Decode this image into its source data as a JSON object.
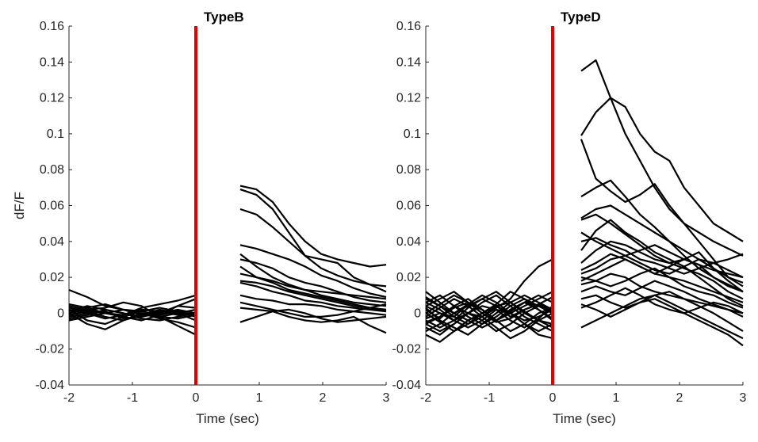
{
  "chart_data": [
    {
      "type": "line",
      "title": "TypeB",
      "xlabel": "Time (sec)",
      "ylabel": "dF/F",
      "xlim": [
        -2,
        3
      ],
      "ylim": [
        -0.04,
        0.16
      ],
      "xticks": [
        "-2",
        "-1",
        "0",
        "1",
        "2",
        "3"
      ],
      "yticks": [
        "-0.04",
        "-0.02",
        "0",
        "0.02",
        "0.04",
        "0.06",
        "0.08",
        "0.1",
        "0.12",
        "0.14",
        "0.16"
      ],
      "event_line": {
        "x": 0,
        "color": "#e00000"
      },
      "line_color": "#000000",
      "pre_window": [
        -2,
        0
      ],
      "post_window": [
        0.7,
        3
      ],
      "series": [
        {
          "pre": [
            0.004,
            0.002,
            0.0,
            -0.001,
            0.002,
            0.001,
            0.0,
            0.002
          ],
          "post": [
            0.071,
            0.069,
            0.062,
            0.05,
            0.04,
            0.033,
            0.03,
            0.028,
            0.026,
            0.027
          ]
        },
        {
          "pre": [
            0.0,
            0.003,
            0.005,
            0.002,
            0.0,
            -0.002,
            0.0,
            -0.001
          ],
          "post": [
            0.069,
            0.066,
            0.058,
            0.045,
            0.032,
            0.025,
            0.021,
            0.018,
            0.016,
            0.015
          ]
        },
        {
          "pre": [
            -0.003,
            -0.001,
            0.002,
            0.0,
            -0.002,
            0.001,
            -0.001,
            0.0
          ],
          "post": [
            0.058,
            0.055,
            0.048,
            0.04,
            0.032,
            0.03,
            0.028,
            0.02,
            0.016,
            0.012
          ]
        },
        {
          "pre": [
            0.013,
            0.009,
            0.004,
            0.002,
            -0.001,
            0.0,
            0.002,
            0.0
          ],
          "post": [
            0.038,
            0.036,
            0.033,
            0.03,
            0.026,
            0.021,
            0.018,
            0.014,
            0.011,
            0.009
          ]
        },
        {
          "pre": [
            0.002,
            -0.004,
            -0.006,
            -0.002,
            0.001,
            0.003,
            0.001,
            -0.002
          ],
          "post": [
            0.03,
            0.028,
            0.025,
            0.02,
            0.017,
            0.015,
            0.012,
            0.009,
            0.007,
            0.006
          ]
        },
        {
          "pre": [
            0.0,
            0.002,
            0.003,
            0.006,
            0.004,
            -0.002,
            -0.003,
            -0.001
          ],
          "post": [
            0.033,
            0.026,
            0.02,
            0.016,
            0.013,
            0.01,
            0.008,
            0.006,
            0.005,
            0.004
          ]
        },
        {
          "pre": [
            -0.002,
            0.0,
            0.001,
            -0.003,
            -0.002,
            0.0,
            0.004,
            0.003
          ],
          "post": [
            0.026,
            0.02,
            0.017,
            0.013,
            0.011,
            0.009,
            0.007,
            0.005,
            0.003,
            0.002
          ]
        },
        {
          "pre": [
            0.003,
            0.001,
            -0.002,
            -0.004,
            -0.001,
            0.002,
            0.0,
            -0.004
          ],
          "post": [
            0.018,
            0.017,
            0.015,
            0.012,
            0.01,
            0.008,
            0.006,
            0.004,
            0.003,
            0.001
          ]
        },
        {
          "pre": [
            0.001,
            0.004,
            0.002,
            0.0,
            -0.003,
            -0.004,
            -0.002,
            0.0
          ],
          "post": [
            0.017,
            0.015,
            0.012,
            0.01,
            0.007,
            0.006,
            0.004,
            0.003,
            0.002,
            0.001
          ]
        },
        {
          "pre": [
            -0.004,
            -0.002,
            0.0,
            0.002,
            0.0,
            -0.003,
            -0.005,
            -0.008
          ],
          "post": [
            0.01,
            0.008,
            0.007,
            0.005,
            0.005,
            0.004,
            0.002,
            0.001,
            0.0,
            -0.001
          ]
        },
        {
          "pre": [
            0.002,
            0.0,
            -0.003,
            -0.001,
            0.003,
            0.005,
            0.007,
            0.01
          ],
          "post": [
            0.006,
            0.004,
            0.002,
            0.0,
            -0.002,
            -0.002,
            -0.001,
            0.001,
            0.003,
            0.005
          ]
        },
        {
          "pre": [
            -0.001,
            0.001,
            0.0,
            -0.002,
            -0.004,
            -0.001,
            0.004,
            0.008
          ],
          "post": [
            -0.005,
            -0.002,
            0.001,
            0.002,
            0.0,
            -0.003,
            -0.005,
            -0.004,
            -0.003,
            -0.002
          ]
        },
        {
          "pre": [
            0.0,
            -0.006,
            -0.009,
            -0.004,
            0.0,
            -0.002,
            -0.007,
            -0.012
          ],
          "post": [
            0.003,
            0.002,
            0.001,
            -0.002,
            -0.004,
            -0.005,
            -0.004,
            -0.002,
            -0.007,
            -0.011
          ]
        },
        {
          "pre": [
            0.005,
            0.003,
            0.0,
            0.002,
            0.001,
            -0.001,
            0.001,
            -0.001
          ],
          "post": [
            0.022,
            0.02,
            0.018,
            0.015,
            0.013,
            0.012,
            0.011,
            0.01,
            0.009,
            0.008
          ]
        }
      ]
    },
    {
      "type": "line",
      "title": "TypeD",
      "xlabel": "Time (sec)",
      "ylabel": "",
      "xlim": [
        -2,
        3
      ],
      "ylim": [
        -0.04,
        0.16
      ],
      "xticks": [
        "-2",
        "-1",
        "0",
        "1",
        "2",
        "3"
      ],
      "yticks": [
        "-0.04",
        "-0.02",
        "0",
        "0.02",
        "0.04",
        "0.06",
        "0.08",
        "0.1",
        "0.12",
        "0.14",
        "0.16"
      ],
      "event_line": {
        "x": 0,
        "color": "#e00000"
      },
      "line_color": "#000000",
      "pre_window": [
        -2,
        0
      ],
      "post_window": [
        0.45,
        3
      ],
      "series": [
        {
          "pre": [
            0.002,
            -0.003,
            0.004,
            0.0,
            -0.002,
            0.003,
            0.008,
            0.018,
            0.026,
            0.03
          ],
          "post": [
            0.135,
            0.141,
            0.12,
            0.1,
            0.085,
            0.07,
            0.058,
            0.05,
            0.045,
            0.04,
            0.036,
            0.032
          ]
        },
        {
          "pre": [
            0.004,
            0.0,
            -0.002,
            0.005,
            0.002,
            -0.004,
            0.001,
            0.006,
            0.004,
            0.002
          ],
          "post": [
            0.099,
            0.112,
            0.12,
            0.115,
            0.1,
            0.09,
            0.085,
            0.07,
            0.06,
            0.05,
            0.045,
            0.04
          ]
        },
        {
          "pre": [
            -0.005,
            -0.002,
            0.003,
            0.006,
            0.0,
            -0.005,
            -0.003,
            0.002,
            0.005,
            0.001
          ],
          "post": [
            0.097,
            0.075,
            0.068,
            0.062,
            0.066,
            0.072,
            0.06,
            0.05,
            0.04,
            0.03,
            0.02,
            0.015
          ]
        },
        {
          "pre": [
            0.008,
            0.004,
            -0.002,
            -0.006,
            -0.002,
            0.004,
            0.006,
            0.001,
            -0.004,
            -0.006
          ],
          "post": [
            0.065,
            0.07,
            0.074,
            0.065,
            0.055,
            0.048,
            0.04,
            0.032,
            0.025,
            0.02,
            0.015,
            0.012
          ]
        },
        {
          "pre": [
            -0.008,
            -0.012,
            -0.006,
            0.0,
            0.004,
            0.002,
            -0.004,
            -0.008,
            -0.003,
            0.004
          ],
          "post": [
            0.053,
            0.058,
            0.06,
            0.055,
            0.05,
            0.045,
            0.04,
            0.035,
            0.03,
            0.025,
            0.02,
            0.017
          ]
        },
        {
          "pre": [
            0.012,
            0.006,
            0.0,
            -0.004,
            -0.008,
            -0.004,
            0.002,
            0.006,
            0.002,
            -0.003
          ],
          "post": [
            0.052,
            0.055,
            0.05,
            0.044,
            0.038,
            0.032,
            0.028,
            0.03,
            0.034,
            0.025,
            0.018,
            0.012
          ]
        },
        {
          "pre": [
            0.0,
            0.005,
            0.01,
            0.006,
            0.002,
            -0.004,
            -0.01,
            -0.006,
            0.0,
            0.003
          ],
          "post": [
            0.035,
            0.046,
            0.052,
            0.045,
            0.04,
            0.034,
            0.03,
            0.026,
            0.03,
            0.028,
            0.024,
            0.02
          ]
        },
        {
          "pre": [
            -0.004,
            -0.008,
            -0.004,
            0.003,
            0.008,
            0.012,
            0.006,
            0.0,
            -0.004,
            -0.008
          ],
          "post": [
            0.028,
            0.035,
            0.04,
            0.038,
            0.034,
            0.03,
            0.028,
            0.025,
            0.022,
            0.018,
            0.012,
            0.008
          ]
        },
        {
          "pre": [
            0.006,
            0.01,
            0.004,
            -0.002,
            -0.006,
            -0.002,
            0.004,
            0.008,
            0.004,
            0.0
          ],
          "post": [
            0.024,
            0.028,
            0.033,
            0.03,
            0.026,
            0.022,
            0.02,
            0.018,
            0.015,
            0.012,
            0.009,
            0.006
          ]
        },
        {
          "pre": [
            -0.012,
            -0.016,
            -0.01,
            -0.004,
            0.0,
            0.004,
            0.0,
            -0.006,
            -0.01,
            -0.006
          ],
          "post": [
            0.022,
            0.025,
            0.03,
            0.032,
            0.028,
            0.024,
            0.022,
            0.026,
            0.02,
            0.014,
            0.008,
            0.004
          ]
        },
        {
          "pre": [
            0.003,
            -0.004,
            -0.008,
            -0.012,
            -0.006,
            0.0,
            0.006,
            0.01,
            0.006,
            0.002
          ],
          "post": [
            0.02,
            0.018,
            0.015,
            0.018,
            0.022,
            0.025,
            0.02,
            0.015,
            0.012,
            0.01,
            0.006,
            0.003
          ]
        },
        {
          "pre": [
            -0.002,
            0.003,
            0.008,
            0.004,
            -0.002,
            -0.008,
            -0.014,
            -0.01,
            -0.004,
            0.0
          ],
          "post": [
            0.016,
            0.018,
            0.022,
            0.02,
            0.015,
            0.012,
            0.01,
            0.008,
            0.006,
            0.004,
            0.002,
            0.0
          ]
        },
        {
          "pre": [
            0.006,
            0.002,
            -0.004,
            0.0,
            0.006,
            0.01,
            0.004,
            -0.002,
            -0.006,
            -0.01
          ],
          "post": [
            0.012,
            0.015,
            0.012,
            0.01,
            0.014,
            0.018,
            0.015,
            0.012,
            0.008,
            0.005,
            0.002,
            -0.002
          ]
        },
        {
          "pre": [
            -0.006,
            -0.002,
            0.004,
            0.008,
            0.002,
            -0.004,
            0.0,
            0.004,
            0.008,
            0.012
          ],
          "post": [
            0.008,
            0.01,
            0.006,
            0.003,
            0.006,
            0.01,
            0.012,
            0.008,
            0.004,
            0.0,
            -0.005,
            -0.01
          ]
        },
        {
          "pre": [
            0.0,
            -0.005,
            -0.01,
            -0.006,
            0.0,
            0.005,
            0.012,
            0.008,
            0.002,
            -0.004
          ],
          "post": [
            0.005,
            0.002,
            -0.002,
            0.002,
            0.006,
            0.008,
            0.004,
            0.0,
            -0.004,
            -0.008,
            -0.012,
            -0.018
          ]
        },
        {
          "pre": [
            -0.01,
            -0.006,
            0.0,
            0.005,
            0.01,
            0.006,
            0.0,
            -0.006,
            -0.012,
            -0.014
          ],
          "post": [
            -0.008,
            -0.004,
            0.0,
            0.004,
            0.008,
            0.01,
            0.006,
            0.002,
            -0.002,
            -0.006,
            -0.01,
            -0.014
          ]
        },
        {
          "pre": [
            0.004,
            0.008,
            0.012,
            0.006,
            0.0,
            -0.004,
            0.002,
            0.006,
            0.01,
            0.006
          ],
          "post": [
            0.04,
            0.042,
            0.038,
            0.035,
            0.03,
            0.028,
            0.025,
            0.022,
            0.025,
            0.028,
            0.03,
            0.033
          ]
        },
        {
          "pre": [
            -0.003,
            0.0,
            -0.004,
            -0.008,
            -0.004,
            0.002,
            0.0,
            -0.004,
            -0.002,
            0.002
          ],
          "post": [
            0.045,
            0.04,
            0.036,
            0.032,
            0.035,
            0.038,
            0.034,
            0.03,
            0.027,
            0.024,
            0.022,
            0.02
          ]
        },
        {
          "pre": [
            0.009,
            0.004,
            0.0,
            0.004,
            0.008,
            0.004,
            -0.002,
            0.002,
            0.005,
            0.009
          ],
          "post": [
            0.018,
            0.022,
            0.026,
            0.03,
            0.026,
            0.022,
            0.026,
            0.03,
            0.027,
            0.02,
            0.016,
            0.012
          ]
        },
        {
          "pre": [
            -0.006,
            -0.01,
            -0.006,
            0.0,
            -0.004,
            -0.01,
            -0.006,
            0.0,
            0.004,
            0.0
          ],
          "post": [
            0.003,
            0.006,
            0.01,
            0.014,
            0.01,
            0.005,
            0.002,
            0.0,
            0.003,
            0.006,
            0.004,
            0.0
          ]
        }
      ]
    }
  ]
}
